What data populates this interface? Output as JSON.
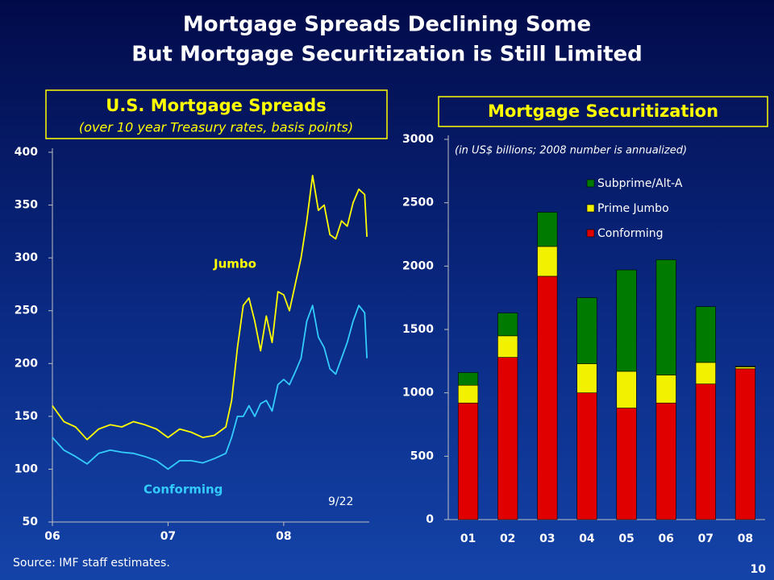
{
  "header": {
    "title": [
      "Mortgage Spreads Declining Some",
      "But Mortgage Securitization is Still Limited"
    ]
  },
  "footer": {
    "source": "Source: IMF staff estimates.",
    "page": "10"
  },
  "chart_data": [
    {
      "type": "line",
      "title": "U.S. Mortgage Spreads",
      "subtitle": "(over 10 year Treasury rates, basis points)",
      "annotations": [
        "Jumbo",
        "Conforming",
        "9/22"
      ],
      "x": [
        2006.0,
        2006.1,
        2006.2,
        2006.3,
        2006.4,
        2006.5,
        2006.6,
        2006.7,
        2006.8,
        2006.9,
        2007.0,
        2007.1,
        2007.2,
        2007.3,
        2007.4,
        2007.5,
        2007.55,
        2007.6,
        2007.65,
        2007.7,
        2007.75,
        2007.8,
        2007.85,
        2007.9,
        2007.95,
        2008.0,
        2008.05,
        2008.1,
        2008.15,
        2008.2,
        2008.25,
        2008.3,
        2008.35,
        2008.4,
        2008.45,
        2008.5,
        2008.55,
        2008.6,
        2008.65,
        2008.7,
        2008.72
      ],
      "series": [
        {
          "name": "Jumbo",
          "color": "#ffff00",
          "values": [
            160,
            145,
            140,
            128,
            138,
            142,
            140,
            145,
            142,
            138,
            130,
            138,
            135,
            130,
            132,
            140,
            165,
            215,
            255,
            262,
            240,
            212,
            245,
            220,
            268,
            265,
            250,
            275,
            300,
            335,
            378,
            345,
            350,
            322,
            318,
            335,
            330,
            352,
            365,
            360,
            320
          ]
        },
        {
          "name": "Conforming",
          "color": "#33ccff",
          "values": [
            130,
            118,
            112,
            105,
            115,
            118,
            116,
            115,
            112,
            108,
            100,
            108,
            108,
            106,
            110,
            115,
            130,
            150,
            150,
            160,
            150,
            162,
            165,
            155,
            180,
            185,
            180,
            192,
            205,
            240,
            255,
            225,
            215,
            195,
            190,
            205,
            220,
            240,
            255,
            248,
            205
          ]
        }
      ],
      "xlim": [
        2006,
        2008.74
      ],
      "xticks": [
        {
          "value": 2006,
          "label": "06"
        },
        {
          "value": 2007,
          "label": "07"
        },
        {
          "value": 2008,
          "label": "08"
        }
      ],
      "ylim": [
        50,
        400
      ],
      "yticks": [
        50,
        100,
        150,
        200,
        250,
        300,
        350,
        400
      ]
    },
    {
      "type": "bar",
      "stacked": true,
      "title": "Mortgage Securitization",
      "subtitle": "(in US$ billions; 2008 number is annualized)",
      "categories": [
        "01",
        "02",
        "03",
        "04",
        "05",
        "06",
        "07",
        "08"
      ],
      "series": [
        {
          "name": "Conforming",
          "color": "#e00000",
          "values": [
            920,
            1280,
            1920,
            1000,
            880,
            920,
            1070,
            1190
          ]
        },
        {
          "name": "Prime Jumbo",
          "color": "#f2f200",
          "values": [
            140,
            170,
            235,
            230,
            290,
            220,
            170,
            15
          ]
        },
        {
          "name": "Subprime/Alt-A",
          "color": "#007a00",
          "values": [
            100,
            180,
            270,
            520,
            800,
            910,
            440,
            5
          ]
        }
      ],
      "ylim": [
        0,
        3000
      ],
      "yticks": [
        0,
        500,
        1000,
        1500,
        2000,
        2500,
        3000
      ]
    }
  ]
}
